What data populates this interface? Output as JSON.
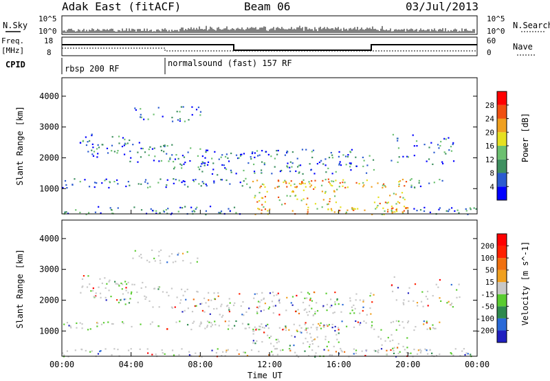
{
  "header": {
    "station": "Adak East (fitACF)",
    "beam": "Beam 06",
    "date": "03/Jul/2013"
  },
  "panels": {
    "nsky": {
      "left_label": "N.Sky",
      "right_label": "N.Search",
      "left_ticks": [
        "10^5",
        "10^0"
      ],
      "right_ticks": [
        "10^5",
        "10^0"
      ]
    },
    "freq": {
      "left_label_1": "Freq.",
      "left_label_2": "[MHz]",
      "left_ticks": [
        "18",
        "8"
      ],
      "right_label": "Nave",
      "right_ticks": [
        "60",
        "0"
      ]
    },
    "cpid": {
      "label": "CPID",
      "segments": [
        "rbsp 200 RF",
        "normalsound (fast) 157 RF"
      ]
    }
  },
  "chart_data": [
    {
      "type": "heatmap",
      "quantity": "power",
      "xlabel": "",
      "ylabel": "Slant Range [km]",
      "xlim": [
        "00:00",
        "24:00"
      ],
      "ylim": [
        180,
        4600
      ],
      "x_ticks": [
        "00:00",
        "04:00",
        "08:00",
        "12:00",
        "16:00",
        "20:00",
        "00:00"
      ],
      "y_ticks": [
        1000,
        2000,
        3000,
        4000
      ],
      "colorbar": {
        "label": "Power [dB]",
        "ticks": [
          "28",
          "24",
          "20",
          "16",
          "12",
          "8",
          "4"
        ],
        "colors": [
          "#0000ff",
          "#2b5bd0",
          "#3f9060",
          "#6cc070",
          "#e6e020",
          "#f0a020",
          "#f05010",
          "#ff0000"
        ]
      }
    },
    {
      "type": "heatmap",
      "quantity": "velocity",
      "xlabel": "Time UT",
      "ylabel": "Slant Range [km]",
      "xlim": [
        "00:00",
        "24:00"
      ],
      "ylim": [
        180,
        4600
      ],
      "x_ticks": [
        "00:00",
        "04:00",
        "08:00",
        "12:00",
        "16:00",
        "20:00",
        "00:00"
      ],
      "y_ticks": [
        1000,
        2000,
        3000,
        4000
      ],
      "colorbar": {
        "label": "Velocity [m s^-1]",
        "ticks": [
          "200",
          "100",
          "50",
          "15",
          "-15",
          "-50",
          "-100",
          "-200"
        ],
        "colors": [
          "#2020c0",
          "#2a6ad8",
          "#2e8a4e",
          "#5acc30",
          "#c8c8c8",
          "#f0a020",
          "#f07010",
          "#ff2000",
          "#ff0000"
        ]
      }
    }
  ]
}
